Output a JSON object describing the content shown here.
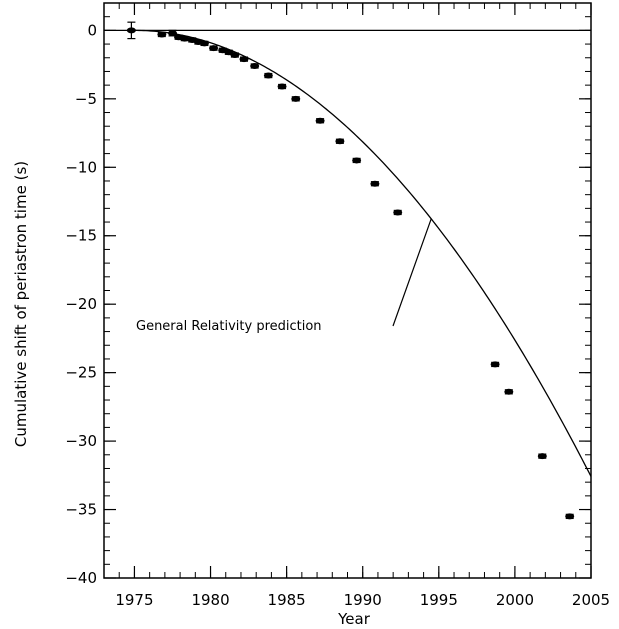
{
  "chart_data": {
    "type": "scatter",
    "xlabel": "Year",
    "ylabel": "Cumulative shift of periastron time (s)",
    "xlim": [
      1973,
      2005
    ],
    "ylim": [
      -40,
      2
    ],
    "x_ticks": [
      1975,
      1980,
      1985,
      1990,
      1995,
      2000,
      2005
    ],
    "y_ticks": [
      0,
      -5,
      -10,
      -15,
      -20,
      -25,
      -30,
      -35,
      -40
    ],
    "x_minor_step": 1,
    "y_minor_step": 1,
    "grid": false,
    "baseline": 0,
    "curve": {
      "label": "General Relativity prediction",
      "formula": "shift = -0.0362 * (year - 1975)^2"
    },
    "points": [
      {
        "x": 1974.8,
        "y": 0.0,
        "err": 0.6
      },
      {
        "x": 1976.8,
        "y": -0.3,
        "err": 0.15
      },
      {
        "x": 1977.5,
        "y": -0.2,
        "err": 0.2
      },
      {
        "x": 1977.9,
        "y": -0.5,
        "err": 0.15
      },
      {
        "x": 1978.3,
        "y": -0.6,
        "err": 0.15
      },
      {
        "x": 1978.8,
        "y": -0.7,
        "err": 0.15
      },
      {
        "x": 1979.2,
        "y": -0.85,
        "err": 0.15
      },
      {
        "x": 1979.6,
        "y": -0.95,
        "err": 0.15
      },
      {
        "x": 1980.2,
        "y": -1.3,
        "err": 0.15
      },
      {
        "x": 1980.8,
        "y": -1.45,
        "err": 0.15
      },
      {
        "x": 1981.2,
        "y": -1.6,
        "err": 0.15
      },
      {
        "x": 1981.6,
        "y": -1.8,
        "err": 0.15
      },
      {
        "x": 1982.2,
        "y": -2.1,
        "err": 0.15
      },
      {
        "x": 1982.9,
        "y": -2.6,
        "err": 0.15
      },
      {
        "x": 1983.8,
        "y": -3.3,
        "err": 0.15
      },
      {
        "x": 1984.7,
        "y": -4.1,
        "err": 0.15
      },
      {
        "x": 1985.6,
        "y": -5.0,
        "err": 0.15
      },
      {
        "x": 1987.2,
        "y": -6.6,
        "err": 0.15
      },
      {
        "x": 1988.5,
        "y": -8.1,
        "err": 0.15
      },
      {
        "x": 1989.6,
        "y": -9.5,
        "err": 0.15
      },
      {
        "x": 1990.8,
        "y": -11.2,
        "err": 0.15
      },
      {
        "x": 1992.3,
        "y": -13.3,
        "err": 0.15
      },
      {
        "x": 1998.7,
        "y": -24.4,
        "err": 0.15
      },
      {
        "x": 1999.6,
        "y": -26.4,
        "err": 0.15
      },
      {
        "x": 2001.8,
        "y": -31.1,
        "err": 0.15
      },
      {
        "x": 2003.6,
        "y": -35.5,
        "err": 0.15
      }
    ]
  }
}
